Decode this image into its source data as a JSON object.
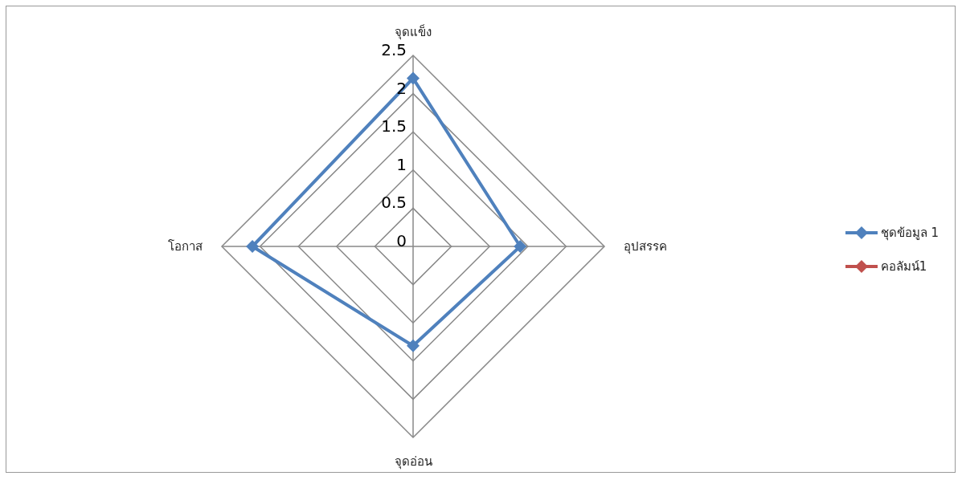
{
  "chart_data": {
    "type": "radar",
    "categories": [
      "จุดแข็ง",
      "อุปสรรค",
      "จุดอ่อน",
      "โอกาส"
    ],
    "series": [
      {
        "name": "ชุดข้อมูล 1",
        "color": "#4f81bd",
        "values": [
          2.2,
          1.4,
          1.3,
          2.1
        ]
      },
      {
        "name": "คอลัมน์1",
        "color": "#c0504d",
        "values": [
          null,
          null,
          null,
          null
        ]
      }
    ],
    "ylim": [
      0,
      2.5
    ],
    "yticks": [
      0,
      0.5,
      1,
      1.5,
      2,
      2.5
    ],
    "grid": true,
    "legend": "right",
    "marker": "diamond",
    "line_style": "solid"
  }
}
